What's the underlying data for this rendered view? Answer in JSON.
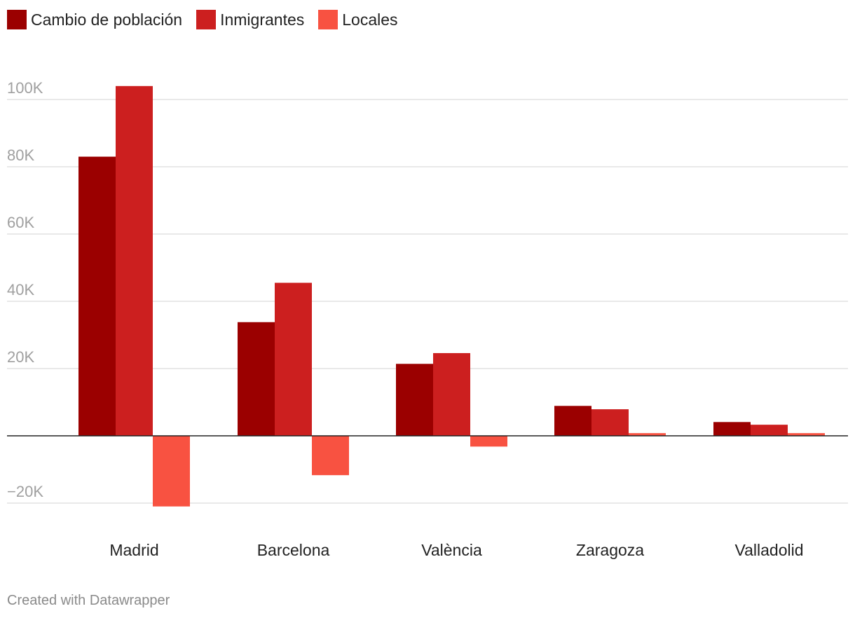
{
  "chart_data": {
    "type": "bar",
    "categories": [
      "Madrid",
      "Barcelona",
      "València",
      "Zaragoza",
      "Valladolid"
    ],
    "series": [
      {
        "name": "Cambio de población",
        "color": "#9b0000",
        "values": [
          83000,
          33800,
          21400,
          8900,
          4100
        ]
      },
      {
        "name": "Inmigrantes",
        "color": "#cc1f1f",
        "values": [
          104000,
          45500,
          24600,
          7900,
          3300
        ]
      },
      {
        "name": "Locales",
        "color": "#f85241",
        "values": [
          -21000,
          -11700,
          -3200,
          800,
          800
        ]
      }
    ],
    "ylim": [
      -20000,
      100000
    ],
    "yticks": [
      100000,
      80000,
      60000,
      40000,
      20000,
      -20000
    ],
    "ytick_labels": [
      "100K",
      "80K",
      "60K",
      "40K",
      "20K",
      "−20K"
    ],
    "legend_position": "top-left",
    "grid": true
  },
  "footer": {
    "credit": "Created with Datawrapper"
  }
}
